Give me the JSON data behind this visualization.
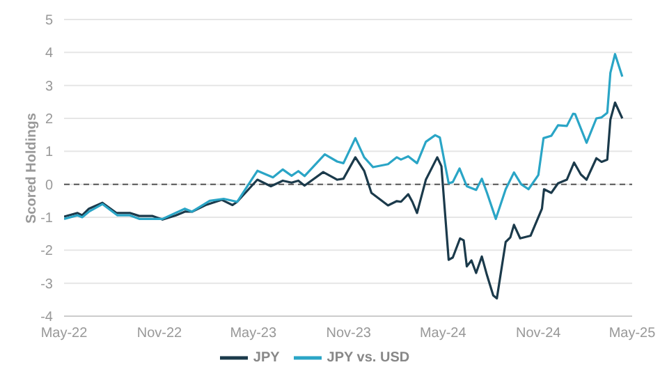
{
  "chart_data": {
    "type": "line",
    "ylabel": "Scored Holdings",
    "xlim": [
      "2022-05",
      "2025-05"
    ],
    "xticks": [
      {
        "value": "2022-05",
        "label": "May-22"
      },
      {
        "value": "2022-11",
        "label": "Nov-22"
      },
      {
        "value": "2023-05",
        "label": "May-23"
      },
      {
        "value": "2023-11",
        "label": "Nov-23"
      },
      {
        "value": "2024-05",
        "label": "May-24"
      },
      {
        "value": "2024-11",
        "label": "Nov-24"
      },
      {
        "value": "2025-05",
        "label": "May-25"
      }
    ],
    "ylim": [
      -4,
      5
    ],
    "yticks": [
      -4,
      -3,
      -2,
      -1,
      0,
      1,
      2,
      3,
      4,
      5
    ],
    "grid": "y",
    "legend": "bottom",
    "line_style": "solid",
    "marker": "none",
    "ref_lines": [
      {
        "axis": "y",
        "value": 0,
        "color": "#555555",
        "line_style": "dashed"
      }
    ],
    "series": [
      {
        "name": "JPY",
        "color": "#1b3a4b",
        "x": [
          "2022-05-01",
          "2022-05-27",
          "2022-06-05",
          "2022-06-18",
          "2022-07-14",
          "2022-08-10",
          "2022-09-05",
          "2022-09-23",
          "2022-10-18",
          "2022-11-07",
          "2022-12-03",
          "2022-12-20",
          "2023-01-03",
          "2023-01-29",
          "2023-03-01",
          "2023-03-22",
          "2023-03-31",
          "2023-05-09",
          "2023-06-04",
          "2023-06-27",
          "2023-07-14",
          "2023-07-27",
          "2023-08-08",
          "2023-09-13",
          "2023-10-10",
          "2023-10-22",
          "2023-11-14",
          "2023-12-01",
          "2023-12-15",
          "2024-01-16",
          "2024-02-02",
          "2024-02-10",
          "2024-02-24",
          "2024-03-03",
          "2024-03-12",
          "2024-03-29",
          "2024-04-20",
          "2024-04-28",
          "2024-05-12",
          "2024-05-20",
          "2024-06-03",
          "2024-06-10",
          "2024-06-16",
          "2024-06-25",
          "2024-07-04",
          "2024-07-15",
          "2024-07-25",
          "2024-08-06",
          "2024-08-13",
          "2024-08-30",
          "2024-09-08",
          "2024-09-15",
          "2024-09-27",
          "2024-10-17",
          "2024-11-08",
          "2024-11-12",
          "2024-11-26",
          "2024-12-09",
          "2024-12-26",
          "2025-01-09",
          "2025-01-22",
          "2025-02-02",
          "2025-02-21",
          "2025-03-03",
          "2025-03-14",
          "2025-03-20",
          "2025-03-29",
          "2025-04-12"
        ],
        "values": [
          -0.98,
          -0.87,
          -0.94,
          -0.74,
          -0.56,
          -0.87,
          -0.87,
          -0.96,
          -0.96,
          -1.07,
          -0.94,
          -0.83,
          -0.83,
          -0.63,
          -0.47,
          -0.63,
          -0.53,
          0.14,
          -0.06,
          0.11,
          0.05,
          0.11,
          -0.04,
          0.37,
          0.14,
          0.17,
          0.82,
          0.41,
          -0.26,
          -0.64,
          -0.51,
          -0.53,
          -0.3,
          -0.53,
          -0.87,
          0.14,
          0.82,
          0.55,
          -2.29,
          -2.22,
          -1.64,
          -1.7,
          -2.49,
          -2.31,
          -2.69,
          -2.19,
          -2.76,
          -3.37,
          -3.46,
          -1.75,
          -1.61,
          -1.23,
          -1.64,
          -1.56,
          -0.74,
          -0.15,
          -0.26,
          0.03,
          0.14,
          0.66,
          0.3,
          0.14,
          0.79,
          0.68,
          0.75,
          1.96,
          2.48,
          2.0
        ]
      },
      {
        "name": "JPY vs. USD",
        "color": "#2aa5c6",
        "x": [
          "2022-05-01",
          "2022-05-27",
          "2022-06-05",
          "2022-06-18",
          "2022-07-14",
          "2022-08-12",
          "2022-09-05",
          "2022-09-23",
          "2022-11-07",
          "2022-12-20",
          "2023-01-03",
          "2023-02-06",
          "2023-03-05",
          "2023-03-31",
          "2023-05-09",
          "2023-06-08",
          "2023-06-27",
          "2023-07-14",
          "2023-07-27",
          "2023-08-08",
          "2023-09-16",
          "2023-10-10",
          "2023-10-22",
          "2023-11-14",
          "2023-12-01",
          "2023-12-18",
          "2024-01-16",
          "2024-02-02",
          "2024-02-10",
          "2024-02-24",
          "2024-03-12",
          "2024-03-29",
          "2024-04-16",
          "2024-04-25",
          "2024-05-12",
          "2024-05-20",
          "2024-06-02",
          "2024-06-16",
          "2024-07-04",
          "2024-07-15",
          "2024-07-25",
          "2024-08-11",
          "2024-08-30",
          "2024-09-15",
          "2024-09-29",
          "2024-10-13",
          "2024-11-01",
          "2024-11-11",
          "2024-11-26",
          "2024-12-09",
          "2024-12-26",
          "2025-01-07",
          "2025-01-11",
          "2025-02-02",
          "2025-02-21",
          "2025-03-03",
          "2025-03-14",
          "2025-03-20",
          "2025-03-29",
          "2025-04-12"
        ],
        "values": [
          -1.05,
          -0.94,
          -1.0,
          -0.83,
          -0.6,
          -0.94,
          -0.94,
          -1.05,
          -1.05,
          -0.74,
          -0.83,
          -0.5,
          -0.44,
          -0.53,
          0.41,
          0.21,
          0.45,
          0.26,
          0.4,
          0.25,
          0.91,
          0.69,
          0.64,
          1.4,
          0.82,
          0.52,
          0.61,
          0.82,
          0.75,
          0.85,
          0.64,
          1.29,
          1.49,
          1.42,
          0.03,
          0.07,
          0.48,
          -0.06,
          -0.17,
          0.17,
          -0.26,
          -1.05,
          -0.15,
          0.36,
          0.0,
          -0.15,
          0.28,
          1.4,
          1.47,
          1.79,
          1.77,
          2.14,
          2.13,
          1.26,
          2.0,
          2.03,
          2.17,
          3.38,
          3.95,
          3.27
        ]
      }
    ]
  }
}
